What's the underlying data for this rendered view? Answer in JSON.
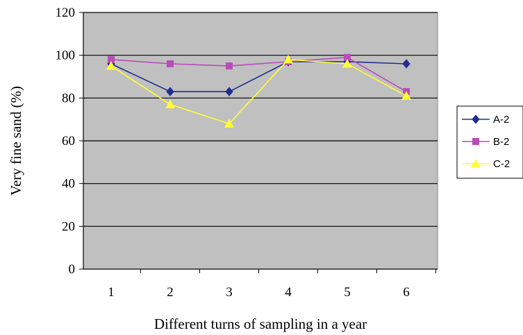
{
  "chart_data": {
    "type": "line",
    "title": "",
    "xlabel": "Different turns of sampling in a year",
    "ylabel": "Very fine sand (%)",
    "categories": [
      "1",
      "2",
      "3",
      "4",
      "5",
      "6"
    ],
    "ylim": [
      0,
      120
    ],
    "yticks": [
      "0",
      "20",
      "40",
      "60",
      "80",
      "100",
      "120"
    ],
    "grid": true,
    "plot_background": "#c0c0c0",
    "legend_position": "right",
    "series": [
      {
        "name": "A-2",
        "color": "#1f2f8f",
        "marker": "diamond",
        "values": [
          96,
          83,
          83,
          97,
          97,
          96
        ]
      },
      {
        "name": "B-2",
        "color": "#b84cb8",
        "marker": "square",
        "values": [
          98,
          96,
          95,
          97,
          99,
          83
        ]
      },
      {
        "name": "C-2",
        "color": "#ffff33",
        "marker": "triangle",
        "values": [
          95,
          77,
          68,
          98,
          96,
          81
        ]
      }
    ]
  }
}
